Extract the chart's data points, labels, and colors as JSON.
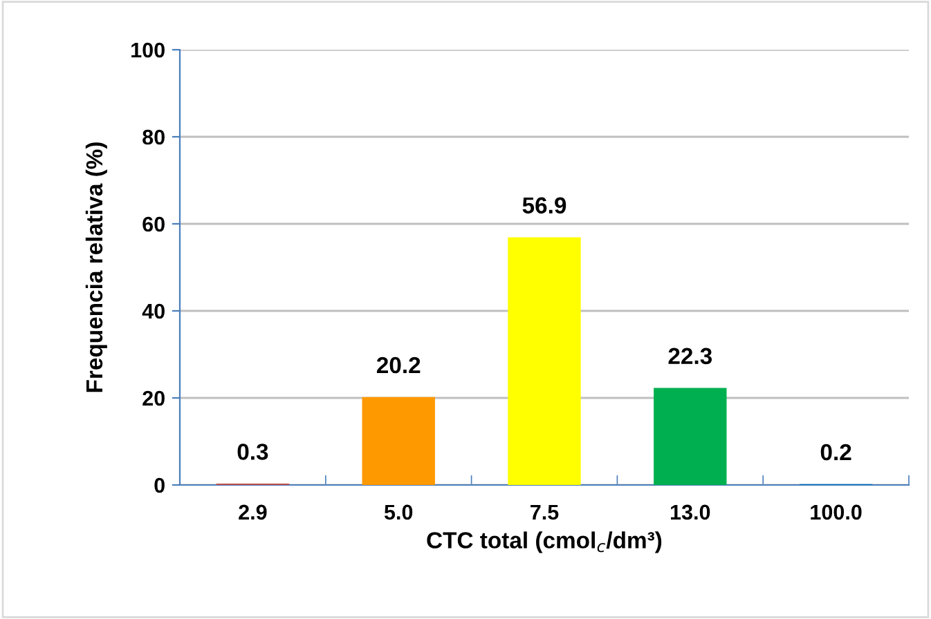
{
  "chart_data": {
    "type": "bar",
    "xlabel": "CTC total (cmol$_{c}$/dm³)",
    "ylabel": "Frequencia relativa (%)",
    "categories": [
      "2.9",
      "5.0",
      "7.5",
      "13.0",
      "100.0"
    ],
    "values": [
      0.3,
      20.2,
      56.9,
      22.3,
      0.2
    ],
    "colors": [
      "#c0504d",
      "#ff9900",
      "#ffff00",
      "#00b050",
      "#0070c0"
    ],
    "ylim": [
      0,
      100
    ],
    "yticks": [
      0,
      20,
      40,
      60,
      80,
      100
    ],
    "grid": "y",
    "data_labels": true
  }
}
